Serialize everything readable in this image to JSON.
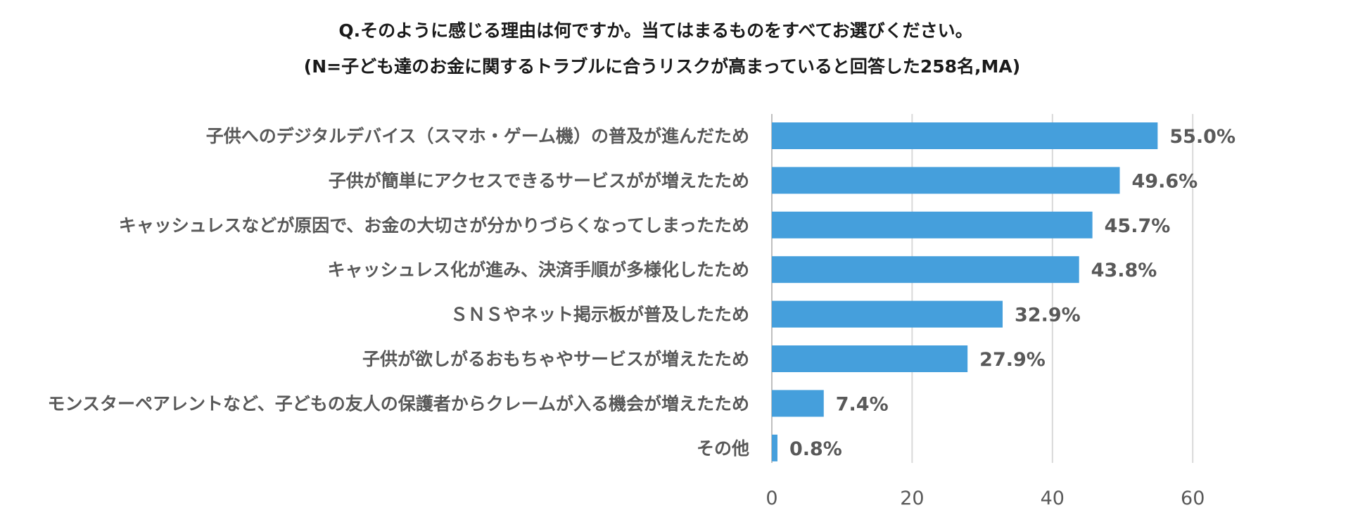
{
  "chart_data": {
    "type": "bar",
    "orientation": "horizontal",
    "title": "Q.そのように感じる理由は何ですか。当てはまるものをすべてお選びください。",
    "subtitle": "(N=子ども達のお金に関するトラブルに合うリスクが高まっていると回答した258名,MA)",
    "categories": [
      "子供へのデジタルデバイス（スマホ・ゲーム機）の普及が進んだため",
      "子供が簡単にアクセスできるサービスがが増えたため",
      "キャッシュレスなどが原因で、お金の大切さが分かりづらくなってしまったため",
      "キャッシュレス化が進み、決済手順が多様化したため",
      "ＳＮＳやネット掲示板が普及したため",
      "子供が欲しがるおもちゃやサービスが増えたため",
      "モンスターペアレントなど、子どもの友人の保護者からクレームが入る機会が増えたため",
      "その他"
    ],
    "values": [
      55.0,
      49.6,
      45.7,
      43.8,
      32.9,
      27.9,
      7.4,
      0.8
    ],
    "value_labels": [
      "55.0%",
      "49.6%",
      "45.7%",
      "43.8%",
      "32.9%",
      "27.9%",
      "7.4%",
      "0.8%"
    ],
    "xticks": [
      0,
      20,
      40,
      60
    ],
    "xtick_labels": [
      "0",
      "20",
      "40",
      "60"
    ],
    "xlim": [
      0,
      80
    ],
    "xlabel": "",
    "ylabel": "",
    "grid": true,
    "legend": false,
    "bar_color": "#459fdc"
  }
}
